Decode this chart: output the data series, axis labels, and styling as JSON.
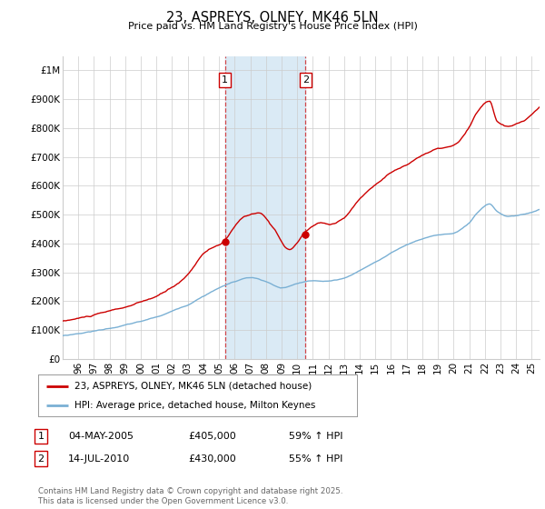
{
  "title": "23, ASPREYS, OLNEY, MK46 5LN",
  "subtitle": "Price paid vs. HM Land Registry's House Price Index (HPI)",
  "footer": "Contains HM Land Registry data © Crown copyright and database right 2025.\nThis data is licensed under the Open Government Licence v3.0.",
  "legend_line1": "23, ASPREYS, OLNEY, MK46 5LN (detached house)",
  "legend_line2": "HPI: Average price, detached house, Milton Keynes",
  "sale1_date": "04-MAY-2005",
  "sale1_price": "£405,000",
  "sale1_hpi": "59% ↑ HPI",
  "sale1_year": 2005.37,
  "sale1_value": 405000,
  "sale2_date": "14-JUL-2010",
  "sale2_price": "£430,000",
  "sale2_hpi": "55% ↑ HPI",
  "sale2_year": 2010.54,
  "sale2_value": 430000,
  "red_color": "#cc0000",
  "blue_color": "#7ab0d4",
  "vline_color": "#cc0000",
  "shaded_color": "#daeaf5",
  "grid_color": "#cccccc",
  "background_color": "#ffffff",
  "ylim": [
    0,
    1050000
  ],
  "xlim_start": 1995.0,
  "xlim_end": 2025.5,
  "yticks": [
    0,
    100000,
    200000,
    300000,
    400000,
    500000,
    600000,
    700000,
    800000,
    900000,
    1000000
  ],
  "ytick_labels": [
    "£0",
    "£100K",
    "£200K",
    "£300K",
    "£400K",
    "£500K",
    "£600K",
    "£700K",
    "£800K",
    "£900K",
    "£1M"
  ],
  "xtick_years": [
    1996,
    1997,
    1998,
    1999,
    2000,
    2001,
    2002,
    2003,
    2004,
    2005,
    2006,
    2007,
    2008,
    2009,
    2010,
    2011,
    2012,
    2013,
    2014,
    2015,
    2016,
    2017,
    2018,
    2019,
    2020,
    2021,
    2022,
    2023,
    2024,
    2025
  ]
}
